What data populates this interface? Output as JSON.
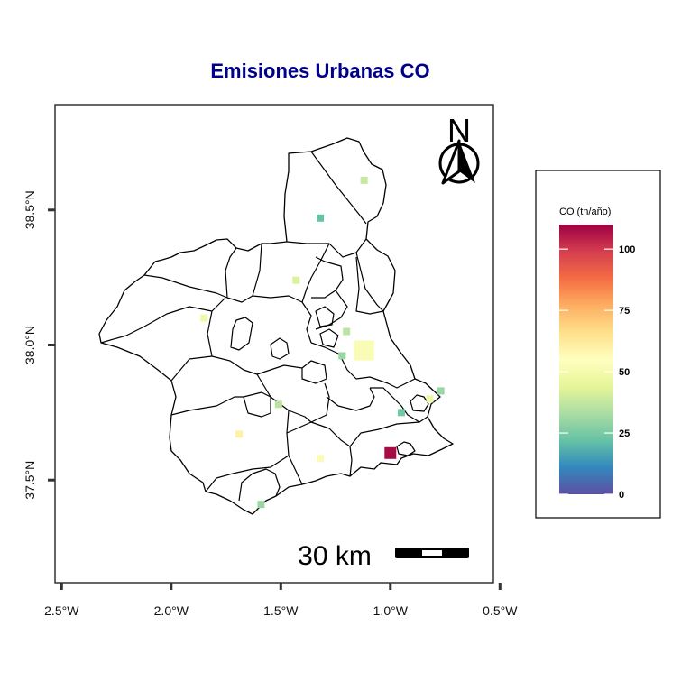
{
  "title": "Emisiones Urbanas CO",
  "north_arrow": {
    "label": "N",
    "icon": "north-arrow-icon"
  },
  "scale_bar": {
    "label": "30 km"
  },
  "axes": {
    "x": {
      "ticks": [
        "2.5°W",
        "2.0°W",
        "1.5°W",
        "1.0°W",
        "0.5°W"
      ],
      "tick_values": [
        -2.5,
        -2.0,
        -1.5,
        -1.0,
        -0.5
      ],
      "range": [
        -2.53,
        -0.53
      ]
    },
    "y": {
      "ticks": [
        "37.5°N",
        "38.0°N",
        "38.5°N"
      ],
      "tick_values": [
        37.5,
        38.0,
        38.5
      ],
      "range": [
        37.12,
        38.89
      ]
    }
  },
  "legend": {
    "title": "CO (tn/año)",
    "ticks": [
      "0",
      "25",
      "50",
      "75",
      "100"
    ],
    "tick_values": [
      0,
      25,
      50,
      75,
      100
    ],
    "range": [
      0,
      110
    ],
    "colors": [
      "#5e4fa2",
      "#3288bd",
      "#66c2a5",
      "#abdda4",
      "#e6f598",
      "#ffffbf",
      "#fee08b",
      "#fdae61",
      "#f46d43",
      "#d53e4f",
      "#9e0142"
    ]
  },
  "chart_data": {
    "type": "heatmap",
    "title": "Emisiones Urbanas CO",
    "xlabel": "",
    "ylabel": "",
    "points": [
      {
        "lon": -1.12,
        "lat": 38.61,
        "value": 38
      },
      {
        "lon": -1.32,
        "lat": 38.47,
        "value": 22
      },
      {
        "lon": -1.43,
        "lat": 38.24,
        "value": 42
      },
      {
        "lon": -1.85,
        "lat": 38.1,
        "value": 48
      },
      {
        "lon": -1.2,
        "lat": 38.05,
        "value": 36
      },
      {
        "lon": -1.12,
        "lat": 37.98,
        "value": 52
      },
      {
        "lon": -1.22,
        "lat": 37.96,
        "value": 30
      },
      {
        "lon": -1.51,
        "lat": 37.78,
        "value": 36
      },
      {
        "lon": -0.95,
        "lat": 37.75,
        "value": 24
      },
      {
        "lon": -0.82,
        "lat": 37.8,
        "value": 48
      },
      {
        "lon": -0.77,
        "lat": 37.83,
        "value": 30
      },
      {
        "lon": -1.69,
        "lat": 37.67,
        "value": 60
      },
      {
        "lon": -1.0,
        "lat": 37.6,
        "value": 108
      },
      {
        "lon": -1.32,
        "lat": 37.58,
        "value": 52
      },
      {
        "lon": -1.59,
        "lat": 37.41,
        "value": 30
      }
    ]
  }
}
